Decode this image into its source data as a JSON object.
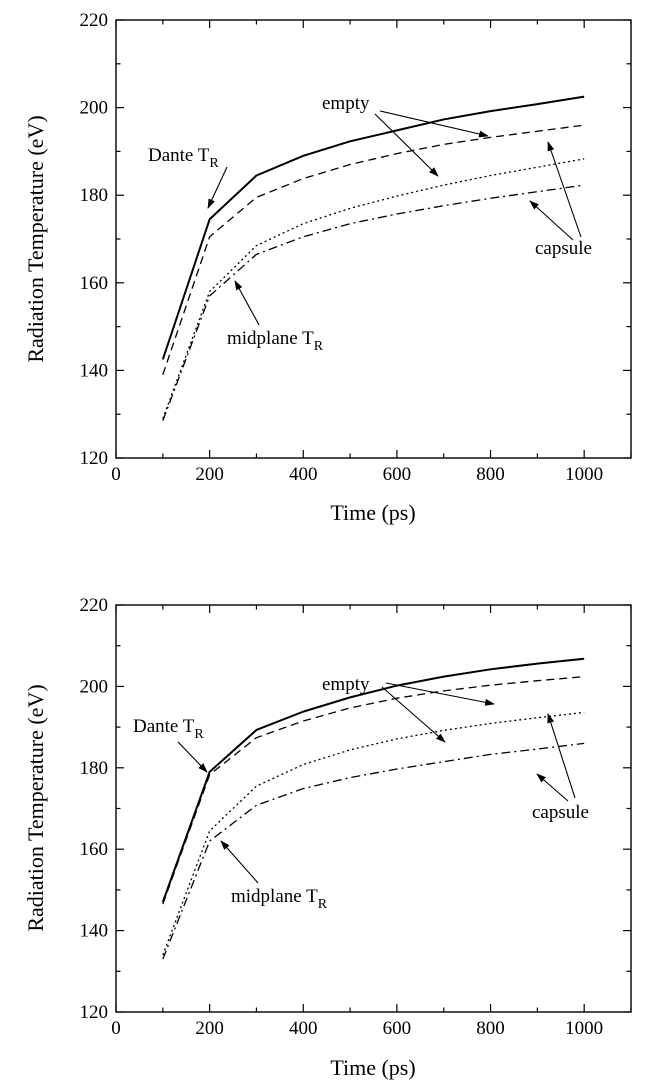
{
  "chart_data": [
    {
      "type": "line",
      "xlabel": "Time (ps)",
      "ylabel": "Radiation Temperature (eV)",
      "xlim": [
        0,
        1100
      ],
      "ylim": [
        120,
        220
      ],
      "xticks": [
        0,
        200,
        400,
        600,
        800,
        1000
      ],
      "yticks": [
        120,
        140,
        160,
        180,
        200,
        220
      ],
      "grid": false,
      "legend": "none",
      "series": [
        {
          "style": "solid",
          "x": [
            100,
            200,
            300,
            400,
            500,
            600,
            700,
            800,
            900,
            1000
          ],
          "y": [
            142.5,
            174.5,
            184.5,
            189,
            192.3,
            194.8,
            197.3,
            199.2,
            200.8,
            202.5
          ]
        },
        {
          "style": "dashed",
          "x": [
            100,
            200,
            300,
            400,
            500,
            600,
            700,
            800,
            900,
            1000
          ],
          "y": [
            139,
            170.5,
            179.5,
            183.8,
            187,
            189.5,
            191.6,
            193.2,
            194.6,
            196
          ]
        },
        {
          "style": "dotted",
          "x": [
            100,
            200,
            300,
            400,
            500,
            600,
            700,
            800,
            900,
            1000
          ],
          "y": [
            129,
            158,
            168.5,
            173.5,
            177,
            179.8,
            182.3,
            184.5,
            186.4,
            188.3
          ]
        },
        {
          "style": "dashdot",
          "x": [
            100,
            200,
            300,
            400,
            500,
            600,
            700,
            800,
            900,
            1000
          ],
          "y": [
            128.5,
            157,
            166.5,
            170.5,
            173.5,
            175.7,
            177.6,
            179.3,
            180.8,
            182.3
          ]
        }
      ],
      "annotations": [
        {
          "text": "empty"
        },
        {
          "text": "Dante T",
          "sub": "R"
        },
        {
          "text": "capsule"
        },
        {
          "text": "midplane T",
          "sub": "R"
        }
      ]
    },
    {
      "type": "line",
      "xlabel": "Time (ps)",
      "ylabel": "Radiation Temperature (eV)",
      "xlim": [
        0,
        1100
      ],
      "ylim": [
        120,
        220
      ],
      "xticks": [
        0,
        200,
        400,
        600,
        800,
        1000
      ],
      "yticks": [
        120,
        140,
        160,
        180,
        200,
        220
      ],
      "grid": false,
      "legend": "none",
      "series": [
        {
          "style": "solid",
          "x": [
            100,
            200,
            300,
            400,
            500,
            600,
            700,
            800,
            900,
            1000
          ],
          "y": [
            147,
            179,
            189.3,
            193.8,
            197.3,
            200.2,
            202.4,
            204.2,
            205.6,
            206.8
          ]
        },
        {
          "style": "dashed",
          "x": [
            100,
            200,
            300,
            400,
            500,
            600,
            700,
            800,
            900,
            1000
          ],
          "y": [
            146.5,
            178.3,
            187.4,
            191.5,
            194.7,
            197.1,
            198.9,
            200.3,
            201.4,
            202.4
          ]
        },
        {
          "style": "dotted",
          "x": [
            100,
            200,
            300,
            400,
            500,
            600,
            700,
            800,
            900,
            1000
          ],
          "y": [
            134,
            164.5,
            175.5,
            180.8,
            184.4,
            187.1,
            189.2,
            190.9,
            192.3,
            193.6
          ]
        },
        {
          "style": "dashdot",
          "x": [
            100,
            200,
            300,
            400,
            500,
            600,
            700,
            800,
            900,
            1000
          ],
          "y": [
            133,
            162,
            170.8,
            174.9,
            177.6,
            179.7,
            181.5,
            183.3,
            184.6,
            186
          ]
        }
      ],
      "annotations": [
        {
          "text": "empty"
        },
        {
          "text": "Dante T",
          "sub": "R"
        },
        {
          "text": "capsule"
        },
        {
          "text": "midplane T",
          "sub": "R"
        }
      ]
    }
  ]
}
